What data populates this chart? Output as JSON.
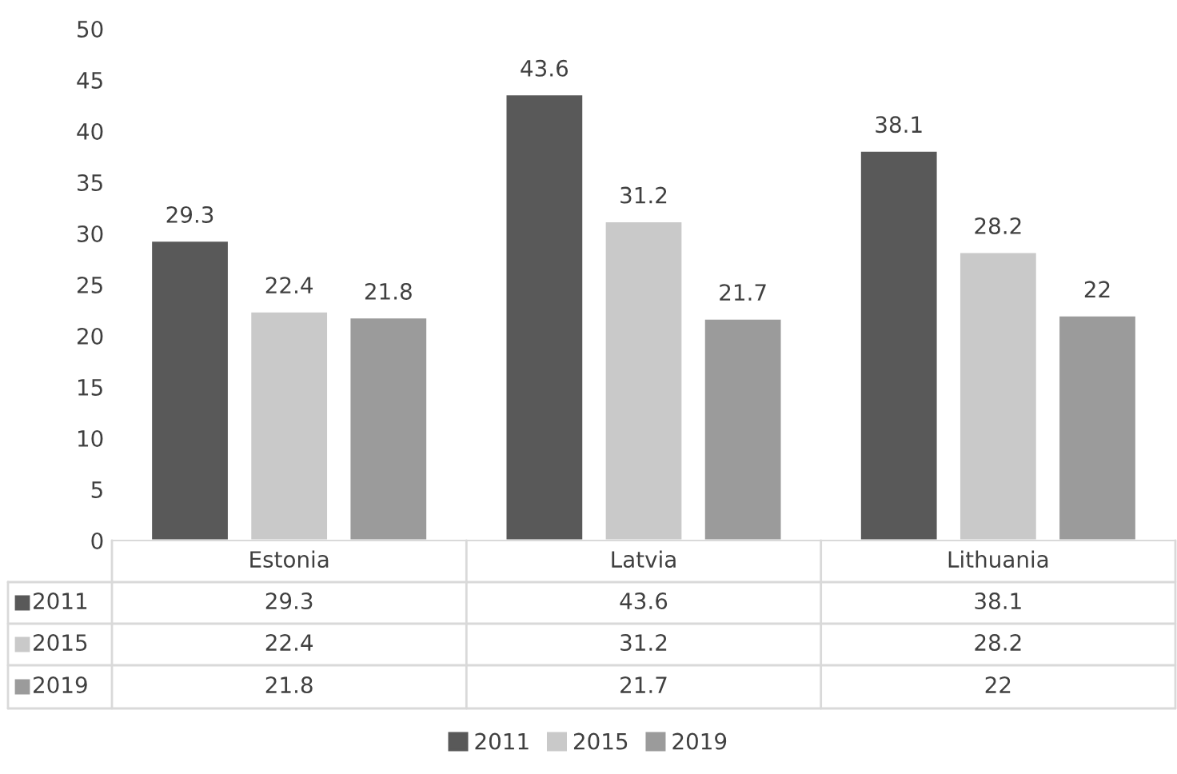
{
  "chart_data": {
    "type": "bar",
    "categories": [
      "Estonia",
      "Latvia",
      "Lithuania"
    ],
    "series": [
      {
        "name": "2011",
        "color": "#595959",
        "values": [
          29.3,
          43.6,
          38.1
        ],
        "value_labels": [
          "29.3",
          "43.6",
          "38.1"
        ]
      },
      {
        "name": "2015",
        "color": "#c9c9c9",
        "values": [
          22.4,
          31.2,
          28.2
        ],
        "value_labels": [
          "22.4",
          "31.2",
          "28.2"
        ]
      },
      {
        "name": "2019",
        "color": "#9b9b9b",
        "values": [
          21.8,
          21.7,
          22
        ],
        "value_labels": [
          "21.8",
          "21.7",
          "22"
        ]
      }
    ],
    "ylim": [
      0,
      50
    ],
    "yticks": [
      0,
      5,
      10,
      15,
      20,
      25,
      30,
      35,
      40,
      45,
      50
    ],
    "annotations": [
      "29.3",
      "43.6",
      "38.1",
      "22.4",
      "31.2",
      "28.2",
      "21.8",
      "21.7",
      "22"
    ],
    "grid": false,
    "legend": "bottom"
  }
}
